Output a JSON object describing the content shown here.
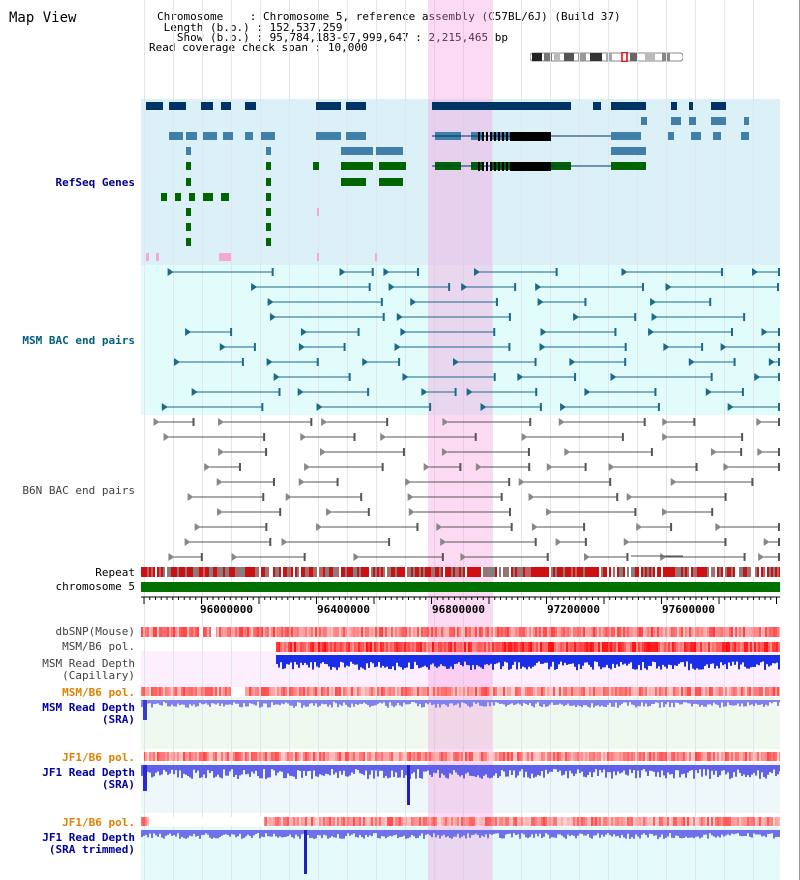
{
  "title": "Map View",
  "header": {
    "chromosome_key": "Chromosome",
    "chromosome_val": "Chromosome 5, reference assembly (C57BL/6J) (Build 37)",
    "length_key": "Length (b.p.)",
    "length_val": "152,537,259",
    "show_key": "Show (b.p.)",
    "show_val": "95,784,183-97,999,647 : 2,215,465 bp",
    "span_key": "Read coverage check span",
    "span_val": "10,000"
  },
  "tracks": {
    "refseq": "RefSeq Genes",
    "msm_bac": "MSM BAC end pairs",
    "b6n_bac": "B6N BAC end pairs",
    "repeat": "Repeat",
    "chromosome": "chromosome 5",
    "dbsnp": "dbSNP(Mouse)",
    "msm_b6_pol": "MSM/B6 pol.",
    "msm_read_depth_cap_1": "MSM Read Depth",
    "msm_read_depth_cap_2": "(Capillary)",
    "msm_b6_pol2": "MSM/B6 pol.",
    "msm_read_depth_sra_1": "MSM Read Depth",
    "msm_read_depth_sra_2": "(SRA)",
    "jf1_b6_pol": "JF1/B6 pol.",
    "jf1_read_depth_1": "JF1 Read Depth",
    "jf1_read_depth_2": "(SRA)",
    "jf1_b6_pol2": "JF1/B6 pol.",
    "jf1_trim_1": "JF1 Read Depth",
    "jf1_trim_2": "(SRA trimmed)"
  },
  "axis": {
    "ticks": [
      "96000000",
      "96400000",
      "96800000",
      "97200000",
      "97600000"
    ]
  },
  "colors": {
    "refseq_label": "#00008b",
    "msm_label": "#006080",
    "b6n_label": "#404040",
    "orange_label": "#e08000",
    "blue_label": "#0000a0",
    "selection": "#f7b6e8"
  }
}
